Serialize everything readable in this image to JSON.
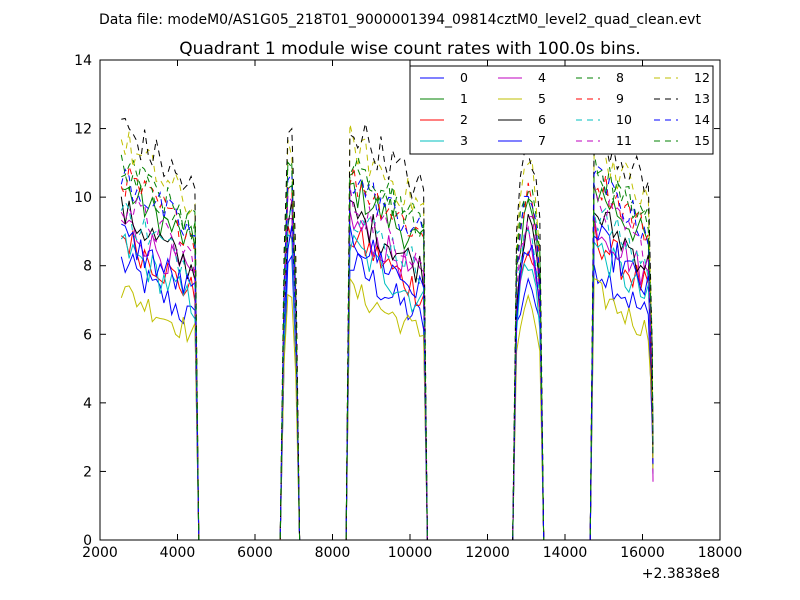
{
  "chart_data": {
    "type": "line",
    "suptitle": "Data file: modeM0/AS1G05_218T01_9000001394_09814cztM0_level2_quad_clean.evt",
    "title": "Quadrant 1 module wise count rates with 100.0s bins.",
    "xlabel": "",
    "ylabel": "",
    "x_offset_label": "+2.3838e8",
    "xlim": [
      2000,
      18000
    ],
    "ylim": [
      0,
      14
    ],
    "xticks": [
      2000,
      4000,
      6000,
      8000,
      10000,
      12000,
      14000,
      16000,
      18000
    ],
    "yticks": [
      0,
      2,
      4,
      6,
      8,
      10,
      12,
      14
    ],
    "grid": false,
    "legend_position": "top-right",
    "legend_columns": 4,
    "segments": [
      {
        "start": 2550,
        "end": 4450
      },
      {
        "start": 6750,
        "end": 7050
      },
      {
        "start": 8450,
        "end": 10350
      },
      {
        "start": 12750,
        "end": 13350
      },
      {
        "start": 14750,
        "end": 16250
      }
    ],
    "series": [
      {
        "name": "0",
        "color": "#0000ff",
        "dash": "solid",
        "base": 8.1,
        "amp": 0.8
      },
      {
        "name": "1",
        "color": "#008000",
        "dash": "solid",
        "base": 10.3,
        "amp": 0.8
      },
      {
        "name": "2",
        "color": "#ff0000",
        "dash": "solid",
        "base": 8.9,
        "amp": 0.8
      },
      {
        "name": "3",
        "color": "#00bfbf",
        "dash": "solid",
        "base": 8.6,
        "amp": 0.8
      },
      {
        "name": "4",
        "color": "#bf00bf",
        "dash": "solid",
        "base": 9.3,
        "amp": 0.8
      },
      {
        "name": "5",
        "color": "#bfbf00",
        "dash": "solid",
        "base": 7.3,
        "amp": 0.6
      },
      {
        "name": "6",
        "color": "#000000",
        "dash": "solid",
        "base": 9.6,
        "amp": 0.8
      },
      {
        "name": "7",
        "color": "#0000ff",
        "dash": "solid",
        "base": 8.9,
        "amp": 0.8
      },
      {
        "name": "8",
        "color": "#008000",
        "dash": "dashed",
        "base": 10.9,
        "amp": 0.8
      },
      {
        "name": "9",
        "color": "#ff0000",
        "dash": "dashed",
        "base": 10.6,
        "amp": 0.8
      },
      {
        "name": "10",
        "color": "#00bfbf",
        "dash": "dashed",
        "base": 9.6,
        "amp": 0.8
      },
      {
        "name": "11",
        "color": "#bf00bf",
        "dash": "dashed",
        "base": 9.9,
        "amp": 0.8
      },
      {
        "name": "12",
        "color": "#bfbf00",
        "dash": "dashed",
        "base": 11.6,
        "amp": 0.9
      },
      {
        "name": "13",
        "color": "#000000",
        "dash": "dashed",
        "base": 12.1,
        "amp": 0.9
      },
      {
        "name": "14",
        "color": "#0000ff",
        "dash": "dashed",
        "base": 10.6,
        "amp": 0.8
      },
      {
        "name": "15",
        "color": "#008000",
        "dash": "dashed",
        "base": 10.9,
        "amp": 0.8
      }
    ]
  }
}
